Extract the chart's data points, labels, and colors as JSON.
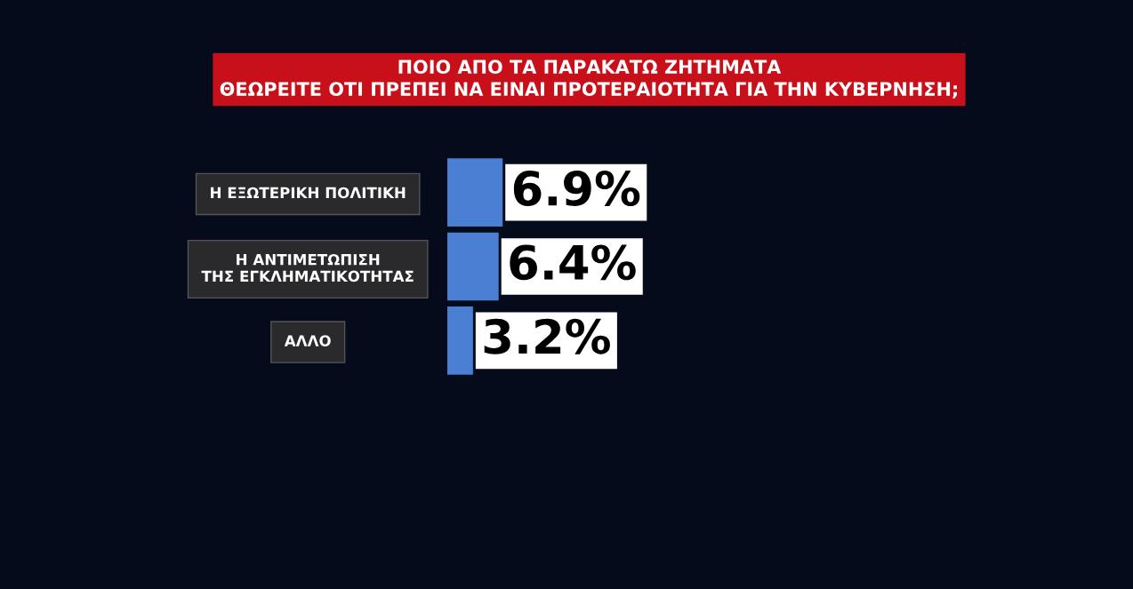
{
  "chart_data": {
    "type": "bar",
    "orientation": "horizontal",
    "title": "ΠΟΙΟ ΑΠΟ ΤΑ ΠΑΡΑΚΑΤΩ ΖΗΤΗΜΑΤΑ\nΘΕΩΡΕΙΤΕ ΟΤΙ ΠΡΕΠΕΙ ΝΑ ΕΙΝΑΙ ΠΡΟΤΕΡΑΙΟΤΗΤΑ ΓΙΑ ΤΗΝ ΚΥΒΕΡΝΗΣΗ;",
    "categories": [
      "Η ΕΞΩΤΕΡΙΚΗ ΠΟΛΙΤΙΚΗ",
      "Η ΑΝΤΙΜΕΤΩΠΙΣΗ\nΤΗΣ ΕΓΚΛΗΜΑΤΙΚΟΤΗΤΑΣ",
      "ΑΛΛΟ"
    ],
    "values": [
      6.9,
      6.4,
      3.2
    ],
    "value_labels": [
      "6.9%",
      "6.4%",
      "3.2%"
    ],
    "color": "#4a7fd4",
    "grid": false,
    "legend": false
  }
}
